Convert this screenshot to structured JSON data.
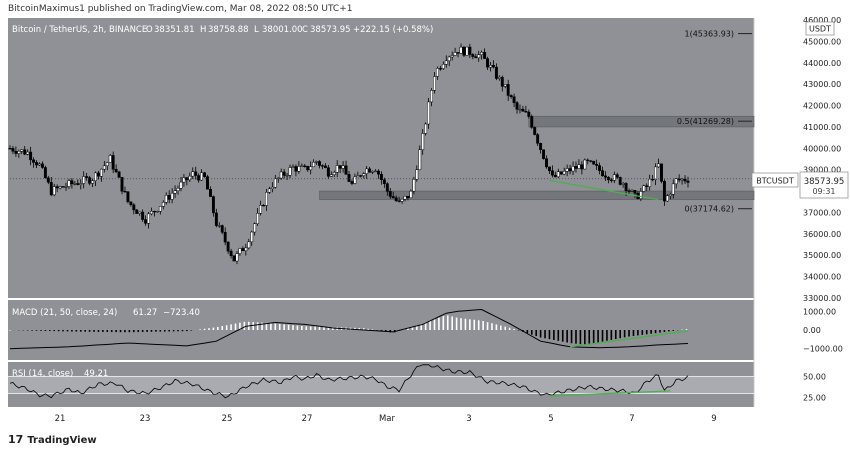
{
  "header": {
    "publisher_text": "BitcoinMaximus1 published on TradingView.com, Mar 08, 2022 08:50 UTC+1"
  },
  "footer": {
    "logo_text": "TradingView",
    "logo_mark": "17"
  },
  "colors": {
    "background": "#8f9196",
    "candle_up": "#ffffff",
    "candle_down": "#000000",
    "zone": "#6f7175",
    "divergence": "#4caf50",
    "text": "#ffffff",
    "rsi_band": "#b4b6ba"
  },
  "chart_data": [
    {
      "type": "candlestick",
      "title": "Bitcoin / TetherUS, 2h, BINANCE",
      "ohlc_header": {
        "o_label": "O",
        "o": "38351.81",
        "h_label": "H",
        "h": "38758.88",
        "l_label": "L",
        "l": "38001.00",
        "c_label": "C",
        "c": "38573.95",
        "change": "+222.15 (+0.58%)"
      },
      "currency": "USDT",
      "symbol_label": "BTCUSDT",
      "last_price": "38573.95",
      "countdown": "09:31",
      "x_ticks": [
        "21",
        "23",
        "25",
        "27",
        "Mar",
        "3",
        "5",
        "7",
        "9"
      ],
      "y_ticks": [
        "46000.00",
        "45000.00",
        "44000.00",
        "43000.00",
        "42000.00",
        "41000.00",
        "40000.00",
        "39000.00",
        "38000.00",
        "37000.00",
        "36000.00",
        "35000.00",
        "34000.00",
        "33000.00"
      ],
      "ylim": [
        33000,
        46000
      ],
      "fib_levels": [
        {
          "label": "1(45363.93)",
          "value": 45363.93
        },
        {
          "label": "0.5(41269.28)",
          "value": 41269.28
        },
        {
          "label": "0(37174.62)",
          "value": 37174.62
        }
      ],
      "zones": [
        {
          "from": 41000,
          "to": 41500
        },
        {
          "from": 37600,
          "to": 38000
        }
      ],
      "price_path": [
        [
          0,
          40000
        ],
        [
          6,
          39800
        ],
        [
          10,
          39200
        ],
        [
          14,
          38000
        ],
        [
          20,
          38300
        ],
        [
          28,
          38600
        ],
        [
          34,
          39500
        ],
        [
          40,
          37500
        ],
        [
          46,
          36700
        ],
        [
          52,
          37500
        ],
        [
          58,
          38300
        ],
        [
          62,
          38800
        ],
        [
          66,
          38600
        ],
        [
          70,
          36500
        ],
        [
          76,
          34800
        ],
        [
          80,
          35500
        ],
        [
          84,
          36800
        ],
        [
          88,
          38200
        ],
        [
          92,
          38700
        ],
        [
          96,
          39100
        ],
        [
          100,
          39000
        ],
        [
          104,
          39400
        ],
        [
          108,
          38900
        ],
        [
          112,
          39200
        ],
        [
          116,
          38300
        ],
        [
          120,
          39000
        ],
        [
          124,
          39100
        ],
        [
          128,
          38000
        ],
        [
          132,
          37400
        ],
        [
          136,
          37900
        ],
        [
          140,
          40500
        ],
        [
          144,
          43500
        ],
        [
          148,
          44300
        ],
        [
          152,
          44600
        ],
        [
          156,
          44500
        ],
        [
          160,
          44300
        ],
        [
          164,
          43600
        ],
        [
          168,
          42800
        ],
        [
          172,
          41800
        ],
        [
          176,
          41500
        ],
        [
          180,
          40000
        ],
        [
          184,
          38600
        ],
        [
          190,
          39000
        ],
        [
          196,
          39300
        ],
        [
          202,
          38800
        ],
        [
          208,
          38400
        ],
        [
          212,
          37700
        ],
        [
          216,
          38200
        ],
        [
          220,
          39200
        ],
        [
          222,
          37500
        ],
        [
          226,
          38500
        ],
        [
          230,
          38574
        ]
      ],
      "price_divergence": [
        [
          183,
          38500
        ],
        [
          220,
          37600
        ]
      ]
    },
    {
      "type": "line",
      "title": "MACD (21, 50, close, 24)",
      "values_text": [
        "61.27",
        "−723.40"
      ],
      "y_ticks": [
        "1000.00",
        "0.00",
        "−1000.00"
      ],
      "ylim": [
        -1500,
        1500
      ],
      "histogram": [
        [
          0,
          0
        ],
        [
          20,
          -80
        ],
        [
          40,
          -120
        ],
        [
          60,
          -60
        ],
        [
          70,
          150
        ],
        [
          80,
          450
        ],
        [
          90,
          350
        ],
        [
          100,
          200
        ],
        [
          110,
          150
        ],
        [
          120,
          100
        ],
        [
          130,
          -150
        ],
        [
          140,
          350
        ],
        [
          148,
          800
        ],
        [
          152,
          650
        ],
        [
          160,
          500
        ],
        [
          170,
          100
        ],
        [
          180,
          -400
        ],
        [
          190,
          -700
        ],
        [
          196,
          -800
        ],
        [
          200,
          -650
        ],
        [
          210,
          -350
        ],
        [
          220,
          -150
        ],
        [
          230,
          60
        ]
      ],
      "macd_line": [
        [
          0,
          -1000
        ],
        [
          20,
          -900
        ],
        [
          40,
          -700
        ],
        [
          60,
          -850
        ],
        [
          70,
          -600
        ],
        [
          80,
          200
        ],
        [
          90,
          400
        ],
        [
          100,
          300
        ],
        [
          110,
          100
        ],
        [
          120,
          0
        ],
        [
          130,
          -100
        ],
        [
          140,
          300
        ],
        [
          148,
          900
        ],
        [
          152,
          1000
        ],
        [
          160,
          1100
        ],
        [
          170,
          300
        ],
        [
          180,
          -600
        ],
        [
          190,
          -900
        ],
        [
          200,
          -950
        ],
        [
          210,
          -900
        ],
        [
          220,
          -800
        ],
        [
          230,
          -723
        ]
      ],
      "divergence": [
        [
          190,
          -900
        ],
        [
          230,
          -50
        ]
      ]
    },
    {
      "type": "line",
      "title": "RSI (14, close)",
      "values_text": [
        "49.21"
      ],
      "y_ticks": [
        "50.00",
        "25.00"
      ],
      "ylim": [
        15,
        65
      ],
      "band": [
        30,
        50
      ],
      "rsi_line": [
        [
          0,
          42
        ],
        [
          6,
          35
        ],
        [
          10,
          28
        ],
        [
          14,
          27
        ],
        [
          20,
          35
        ],
        [
          24,
          30
        ],
        [
          30,
          41
        ],
        [
          36,
          42
        ],
        [
          40,
          33
        ],
        [
          46,
          30
        ],
        [
          52,
          38
        ],
        [
          56,
          45
        ],
        [
          62,
          41
        ],
        [
          68,
          32
        ],
        [
          74,
          26
        ],
        [
          80,
          38
        ],
        [
          86,
          46
        ],
        [
          92,
          43
        ],
        [
          96,
          50
        ],
        [
          100,
          47
        ],
        [
          104,
          52
        ],
        [
          108,
          46
        ],
        [
          114,
          48
        ],
        [
          120,
          50
        ],
        [
          124,
          47
        ],
        [
          128,
          38
        ],
        [
          132,
          34
        ],
        [
          136,
          52
        ],
        [
          140,
          68
        ],
        [
          144,
          62
        ],
        [
          150,
          56
        ],
        [
          156,
          55
        ],
        [
          162,
          44
        ],
        [
          168,
          42
        ],
        [
          174,
          38
        ],
        [
          178,
          32
        ],
        [
          182,
          28
        ],
        [
          186,
          31
        ],
        [
          190,
          34
        ],
        [
          196,
          38
        ],
        [
          202,
          35
        ],
        [
          208,
          33
        ],
        [
          212,
          30
        ],
        [
          216,
          44
        ],
        [
          220,
          52
        ],
        [
          222,
          33
        ],
        [
          226,
          45
        ],
        [
          230,
          49
        ]
      ],
      "divergence": [
        [
          183,
          27
        ],
        [
          224,
          33
        ]
      ]
    }
  ]
}
